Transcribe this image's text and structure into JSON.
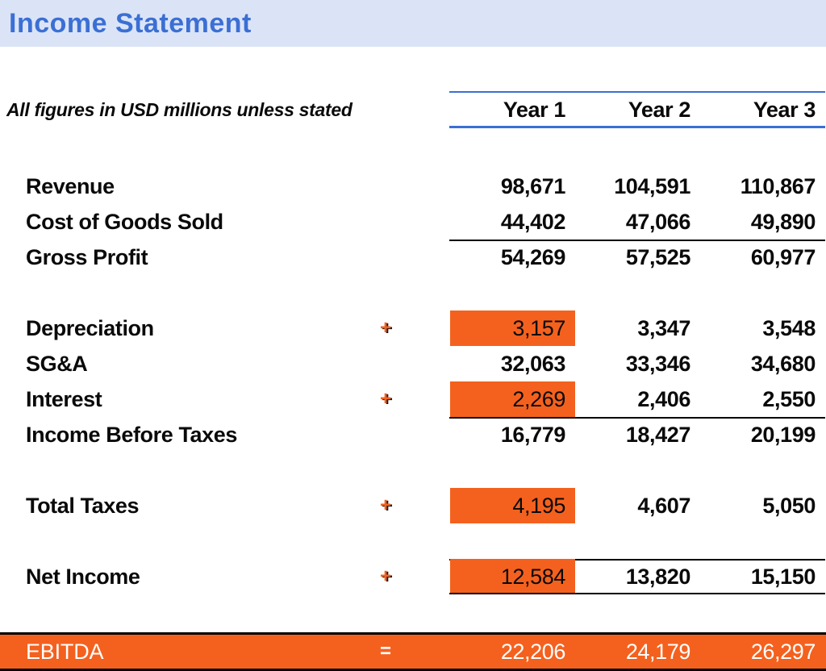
{
  "title": "Income Statement",
  "note": "All figures in USD millions unless stated",
  "columns": [
    "Year 1",
    "Year 2",
    "Year 3"
  ],
  "rows": [
    {
      "label": "Revenue",
      "op": "",
      "values": [
        "98,671",
        "104,591",
        "110,867"
      ],
      "highlight": false,
      "border_top": false,
      "border_bottom": false,
      "gap_before": "large"
    },
    {
      "label": "Cost of Goods Sold",
      "op": "",
      "values": [
        "44,402",
        "47,066",
        "49,890"
      ],
      "highlight": false,
      "border_top": false,
      "border_bottom": false,
      "gap_before": false
    },
    {
      "label": "Gross Profit",
      "op": "",
      "values": [
        "54,269",
        "57,525",
        "60,977"
      ],
      "highlight": false,
      "border_top": true,
      "border_bottom": false,
      "gap_before": false
    },
    {
      "label": "Depreciation",
      "op": "+",
      "values": [
        "3,157",
        "3,347",
        "3,548"
      ],
      "highlight": true,
      "border_top": false,
      "border_bottom": false,
      "gap_before": true
    },
    {
      "label": "SG&A",
      "op": "",
      "values": [
        "32,063",
        "33,346",
        "34,680"
      ],
      "highlight": false,
      "border_top": false,
      "border_bottom": false,
      "gap_before": false
    },
    {
      "label": "Interest",
      "op": "+",
      "values": [
        "2,269",
        "2,406",
        "2,550"
      ],
      "highlight": true,
      "border_top": false,
      "border_bottom": false,
      "gap_before": false
    },
    {
      "label": "Income Before Taxes",
      "op": "",
      "values": [
        "16,779",
        "18,427",
        "20,199"
      ],
      "highlight": false,
      "border_top": true,
      "border_bottom": false,
      "gap_before": false
    },
    {
      "label": "Total Taxes",
      "op": "+",
      "values": [
        "4,195",
        "4,607",
        "5,050"
      ],
      "highlight": true,
      "border_top": false,
      "border_bottom": false,
      "gap_before": true
    },
    {
      "label": "Net Income",
      "op": "+",
      "values": [
        "12,584",
        "13,820",
        "15,150"
      ],
      "highlight": true,
      "border_top": true,
      "border_bottom": true,
      "gap_before": true
    }
  ],
  "footer": {
    "label": "EBITDA",
    "op": "=",
    "values": [
      "22,206",
      "24,179",
      "26,297"
    ]
  },
  "colors": {
    "accent_orange": "#F4611E",
    "title_blue": "#3B6FD4",
    "band_blue": "#DBE4F6",
    "line_blue": "#3B6FD4"
  }
}
